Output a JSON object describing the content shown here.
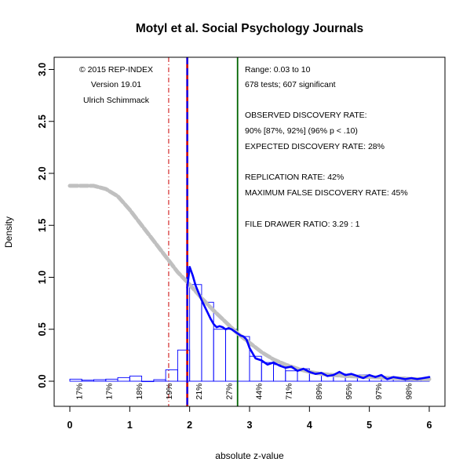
{
  "chart_data": {
    "type": "histogram",
    "title": "Motyl et al. Social Psychology Journals",
    "xlabel": "absolute z-value",
    "ylabel": "Density",
    "xlim": [
      0,
      6
    ],
    "ylim": [
      0,
      3
    ],
    "x_ticks": [
      "0",
      "1",
      "2",
      "3",
      "4",
      "5",
      "6"
    ],
    "y_ticks": [
      "0.0",
      "0.5",
      "1.0",
      "1.5",
      "2.0",
      "2.5",
      "3.0"
    ],
    "histogram": {
      "bin_width": 0.2,
      "bins": [
        {
          "x0": 0.0,
          "density": 0.02
        },
        {
          "x0": 0.2,
          "density": 0.01
        },
        {
          "x0": 0.4,
          "density": 0.015
        },
        {
          "x0": 0.6,
          "density": 0.02
        },
        {
          "x0": 0.8,
          "density": 0.035
        },
        {
          "x0": 1.0,
          "density": 0.05
        },
        {
          "x0": 1.2,
          "density": 0.0
        },
        {
          "x0": 1.4,
          "density": 0.015
        },
        {
          "x0": 1.6,
          "density": 0.11
        },
        {
          "x0": 1.8,
          "density": 0.3
        },
        {
          "x0": 2.0,
          "density": 0.93
        },
        {
          "x0": 2.2,
          "density": 0.76
        },
        {
          "x0": 2.4,
          "density": 0.5
        },
        {
          "x0": 2.6,
          "density": 0.5
        },
        {
          "x0": 2.8,
          "density": 0.43
        },
        {
          "x0": 3.0,
          "density": 0.24
        },
        {
          "x0": 3.2,
          "density": 0.18
        },
        {
          "x0": 3.4,
          "density": 0.16
        },
        {
          "x0": 3.6,
          "density": 0.1
        },
        {
          "x0": 3.8,
          "density": 0.12
        },
        {
          "x0": 4.0,
          "density": 0.08
        },
        {
          "x0": 4.2,
          "density": 0.06
        },
        {
          "x0": 4.4,
          "density": 0.07
        },
        {
          "x0": 4.6,
          "density": 0.05
        },
        {
          "x0": 4.8,
          "density": 0.06
        },
        {
          "x0": 5.0,
          "density": 0.05
        },
        {
          "x0": 5.2,
          "density": 0.04
        },
        {
          "x0": 5.4,
          "density": 0.04
        },
        {
          "x0": 5.6,
          "density": 0.03
        },
        {
          "x0": 5.8,
          "density": 0.03
        }
      ]
    },
    "series": [
      {
        "color": "#c0c0c0",
        "style": "dashed-thick",
        "x": [
          0.0,
          0.2,
          0.4,
          0.6,
          0.8,
          1.0,
          1.2,
          1.4,
          1.6,
          1.8,
          2.0,
          2.2,
          2.4,
          2.6,
          2.8,
          3.0,
          3.2,
          3.4,
          3.6,
          3.8,
          4.0,
          4.2,
          4.4,
          4.6,
          4.8,
          5.0,
          5.2,
          5.4,
          5.6,
          5.8,
          6.0
        ],
        "y": [
          1.88,
          1.88,
          1.88,
          1.85,
          1.78,
          1.65,
          1.5,
          1.35,
          1.2,
          1.05,
          0.93,
          0.8,
          0.68,
          0.57,
          0.46,
          0.37,
          0.28,
          0.21,
          0.16,
          0.12,
          0.09,
          0.07,
          0.06,
          0.05,
          0.045,
          0.04,
          0.035,
          0.03,
          0.025,
          0.02,
          0.02
        ]
      },
      {
        "color": "#0000ff",
        "style": "solid-thick",
        "x": [
          1.96,
          2.0,
          2.05,
          2.1,
          2.15,
          2.2,
          2.25,
          2.3,
          2.35,
          2.4,
          2.45,
          2.5,
          2.55,
          2.6,
          2.65,
          2.7,
          2.75,
          2.8,
          2.85,
          2.9,
          2.95,
          3.0,
          3.1,
          3.2,
          3.3,
          3.4,
          3.5,
          3.6,
          3.7,
          3.8,
          3.9,
          4.0,
          4.1,
          4.2,
          4.3,
          4.4,
          4.5,
          4.6,
          4.7,
          4.8,
          4.9,
          5.0,
          5.1,
          5.2,
          5.3,
          5.4,
          5.5,
          5.6,
          5.7,
          5.8,
          5.9,
          6.0
        ],
        "y": [
          0.9,
          1.1,
          1.02,
          0.92,
          0.85,
          0.78,
          0.72,
          0.66,
          0.6,
          0.55,
          0.52,
          0.53,
          0.52,
          0.5,
          0.51,
          0.5,
          0.48,
          0.46,
          0.44,
          0.43,
          0.4,
          0.32,
          0.22,
          0.2,
          0.16,
          0.18,
          0.15,
          0.13,
          0.14,
          0.1,
          0.12,
          0.09,
          0.07,
          0.08,
          0.05,
          0.06,
          0.09,
          0.06,
          0.07,
          0.05,
          0.03,
          0.06,
          0.04,
          0.06,
          0.02,
          0.04,
          0.03,
          0.02,
          0.03,
          0.02,
          0.03,
          0.04
        ]
      }
    ],
    "vlines": [
      {
        "x": 1.65,
        "color": "#cc0000",
        "style": "dashdot"
      },
      {
        "x": 1.96,
        "color": "#cc0000",
        "style": "solid"
      },
      {
        "x": 1.96,
        "color": "#0000ff",
        "style": "dashed"
      },
      {
        "x": 2.8,
        "color": "#006400",
        "style": "solid"
      }
    ],
    "bottom_percent_labels": [
      {
        "x": 0.15,
        "text": "17%"
      },
      {
        "x": 0.65,
        "text": "17%"
      },
      {
        "x": 1.15,
        "text": "18%"
      },
      {
        "x": 1.65,
        "text": "19%"
      },
      {
        "x": 2.15,
        "text": "21%"
      },
      {
        "x": 2.65,
        "text": "27%"
      },
      {
        "x": 3.15,
        "text": "44%"
      },
      {
        "x": 3.65,
        "text": "71%"
      },
      {
        "x": 4.15,
        "text": "89%"
      },
      {
        "x": 4.65,
        "text": "95%"
      },
      {
        "x": 5.15,
        "text": "97%"
      },
      {
        "x": 5.65,
        "text": "98%"
      }
    ],
    "annotations_left": [
      "© 2015 REP-INDEX",
      "Version 19.01",
      "Ulrich Schimmack"
    ],
    "annotations_right": [
      "Range: 0.03 to 10",
      "678 tests; 607 significant",
      "OBSERVED DISCOVERY RATE:",
      "90%  [87%, 92%]    (96% p < .10)",
      "EXPECTED DISCOVERY RATE: 28%",
      "REPLICATION RATE: 42%",
      "MAXIMUM FALSE DISCOVERY RATE: 45%",
      "FILE DRAWER RATIO: 3.29 : 1"
    ]
  }
}
